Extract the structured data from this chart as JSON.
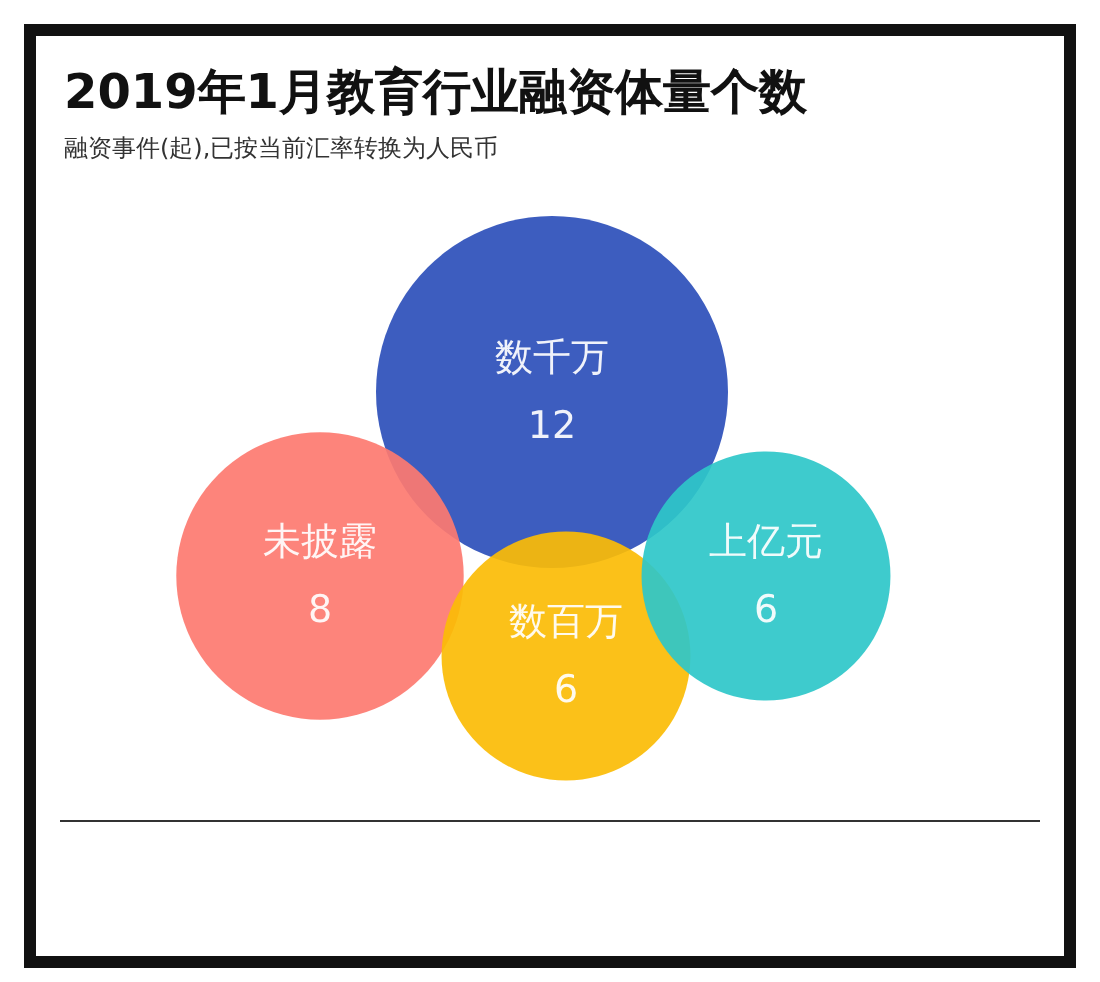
{
  "chart_data": {
    "type": "other",
    "title": "2019年1月教育行业融资体量个数",
    "subtitle": "融资事件(起),已按当前汇率转换为人民币",
    "categories": [
      "数千万",
      "未披露",
      "数百万",
      "上亿元"
    ],
    "values": [
      12,
      8,
      6,
      6
    ],
    "colors": [
      "#2c4fba",
      "#fd7a70",
      "#fbbc05",
      "#2ec7c9"
    ],
    "data_labels": true
  }
}
